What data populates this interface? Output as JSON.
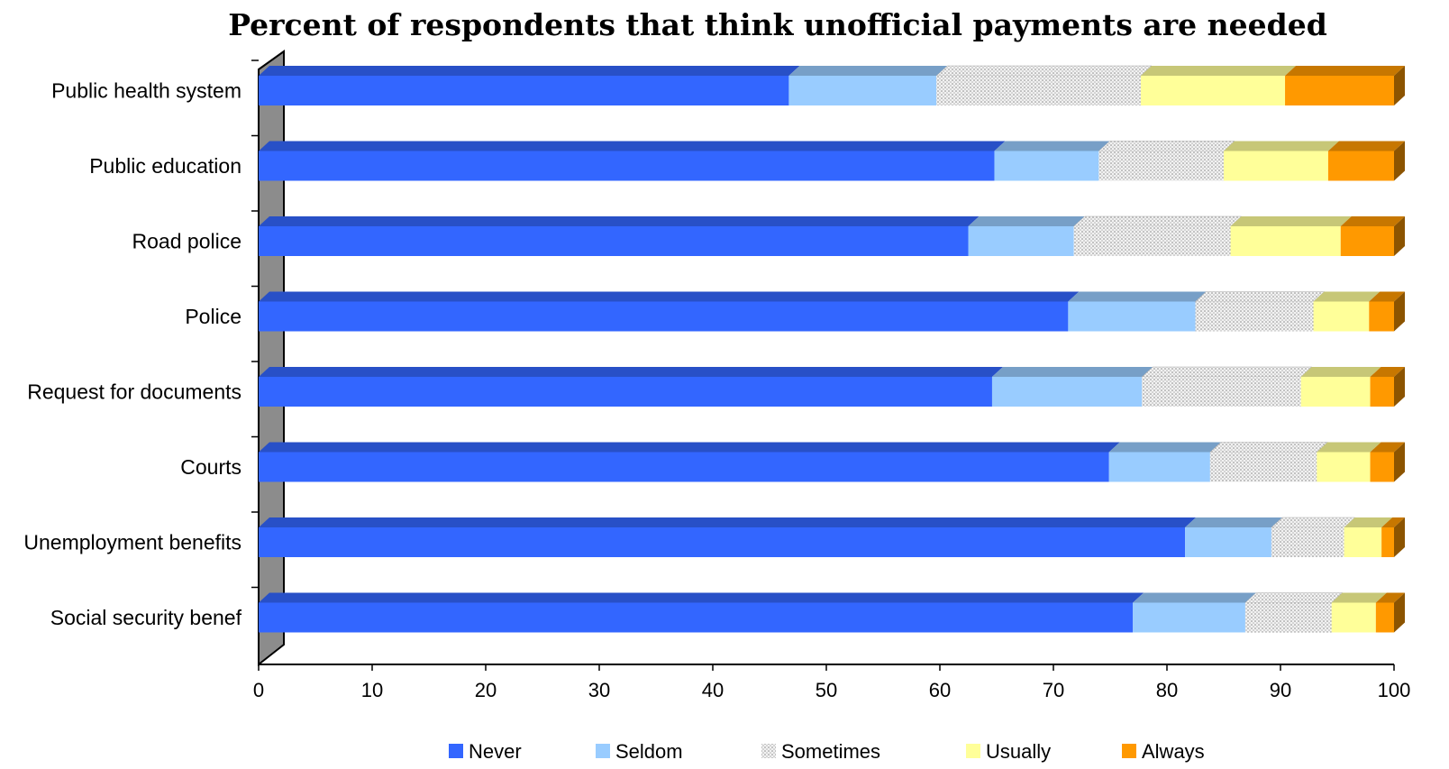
{
  "chart_data": {
    "type": "bar",
    "orientation": "horizontal",
    "stacked": true,
    "title": "Percent of respondents that think unofficial payments are needed",
    "xlim": [
      0,
      100
    ],
    "xticks": [
      0,
      10,
      20,
      30,
      40,
      50,
      60,
      70,
      80,
      90,
      100
    ],
    "categories": [
      "Public health system",
      "Public education",
      "Road police",
      "Police",
      "Request for documents",
      "Courts",
      "Unemployment benefits",
      "Social security benef"
    ],
    "series": [
      {
        "name": "Never",
        "color": "#3366ff",
        "values": [
          46.7,
          64.8,
          62.5,
          71.3,
          64.6,
          74.9,
          81.6,
          77.0
        ]
      },
      {
        "name": "Seldom",
        "color": "#99ccff",
        "values": [
          13.0,
          9.2,
          9.3,
          11.2,
          13.2,
          8.9,
          7.6,
          9.9
        ]
      },
      {
        "name": "Sometimes",
        "color": "#e6e6e6",
        "pattern": "dots",
        "values": [
          18.0,
          11.0,
          13.8,
          10.4,
          14.0,
          9.4,
          6.4,
          7.6
        ]
      },
      {
        "name": "Usually",
        "color": "#ffff99",
        "values": [
          12.7,
          9.2,
          9.7,
          4.9,
          6.1,
          4.7,
          3.3,
          3.9
        ]
      },
      {
        "name": "Always",
        "color": "#ff9900",
        "values": [
          9.6,
          5.8,
          4.7,
          2.2,
          2.1,
          2.1,
          1.1,
          1.6
        ]
      }
    ],
    "legend": "bottom",
    "grid": false
  }
}
